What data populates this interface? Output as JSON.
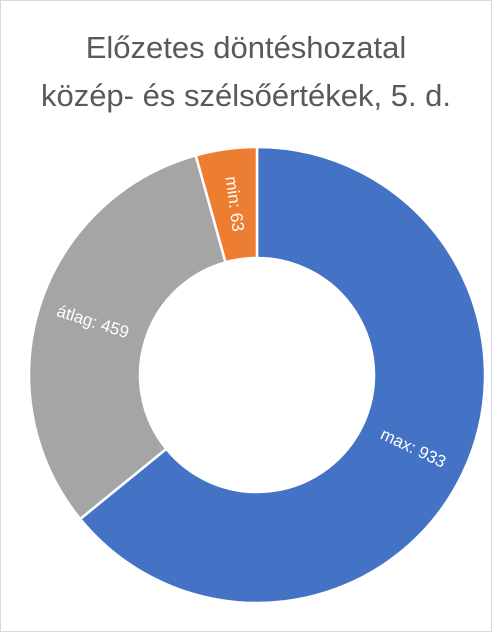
{
  "chart_data": {
    "type": "donut",
    "title": [
      "Előzetes döntéshozatal",
      "közép- és szélsőértékek, 5. d."
    ],
    "values": [
      933,
      459,
      63
    ],
    "value_labels": [
      "max: 933",
      "átlag: 459",
      "min: 63"
    ],
    "colors": [
      "#4472c4",
      "#a5a5a5",
      "#ed7d31"
    ]
  }
}
